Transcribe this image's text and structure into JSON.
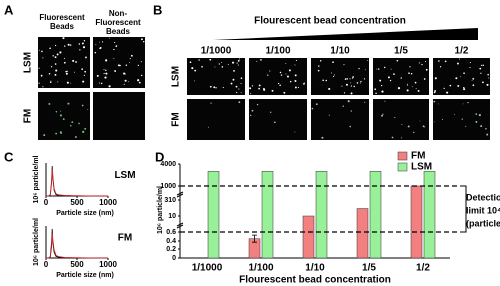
{
  "panel_a": {
    "label": "A",
    "columns": [
      [
        "Fluorescent",
        "Beads"
      ],
      [
        "Non-",
        "Fluorescent",
        "Beads"
      ]
    ],
    "rows": [
      "LSM",
      "FM"
    ]
  },
  "panel_b": {
    "label": "B",
    "title": "Flourescent bead concentration",
    "columns": [
      "1/1000",
      "1/100",
      "1/10",
      "1/5",
      "1/2"
    ],
    "rows": [
      "LSM",
      "FM"
    ]
  },
  "chart_data": [
    {
      "type": "line",
      "panel_label": "C",
      "title": "LSM",
      "x_label": "Particle size (nm)",
      "y_label": "10⁶ particle/ml",
      "x": [
        0,
        40,
        70,
        90,
        100,
        110,
        130,
        160,
        200,
        300,
        500,
        800,
        1000
      ],
      "xlim": [
        0,
        1000
      ],
      "xticks": [
        0,
        500,
        1000
      ],
      "ylim": [
        0,
        1.1
      ],
      "series": [
        {
          "name": "LSM",
          "color": "#000000",
          "values": [
            0,
            0,
            0.05,
            0.5,
            1,
            0.6,
            0.2,
            0.05,
            0.02,
            0.01,
            0,
            0,
            0
          ]
        },
        {
          "name": "LSM-fit",
          "color": "#d62728",
          "values": [
            0,
            0,
            0.03,
            0.4,
            0.9,
            0.7,
            0.25,
            0.08,
            0.04,
            0.02,
            0.01,
            0,
            0
          ]
        }
      ]
    },
    {
      "type": "line",
      "title": "FM",
      "x_label": "Particle size (nm)",
      "y_label": "10⁶ particle/ml",
      "x": [
        0,
        40,
        70,
        90,
        100,
        110,
        130,
        160,
        200,
        300,
        500,
        800,
        1000
      ],
      "xlim": [
        0,
        1000
      ],
      "xticks": [
        0,
        500,
        1000
      ],
      "ylim": [
        0,
        1.1
      ],
      "series": [
        {
          "name": "FM",
          "color": "#000000",
          "values": [
            0,
            0,
            0.05,
            0.55,
            1,
            0.55,
            0.2,
            0.06,
            0.03,
            0.01,
            0,
            0,
            0
          ]
        },
        {
          "name": "FM-fit",
          "color": "#d62728",
          "values": [
            0,
            0,
            0.02,
            0.35,
            0.85,
            0.65,
            0.3,
            0.1,
            0.05,
            0.02,
            0.01,
            0,
            0
          ]
        }
      ]
    },
    {
      "type": "bar",
      "panel_label": "D",
      "x_label": "Flourescent bead concentration",
      "y_label": "10⁶ particle/ml",
      "categories": [
        "1/1000",
        "1/100",
        "1/10",
        "1/5",
        "1/2"
      ],
      "series": [
        {
          "name": "FM",
          "color": "#f28080",
          "values": [
            0,
            0.45,
            10,
            150,
            1000
          ],
          "errors": [
            null,
            0.08,
            null,
            null,
            null
          ]
        },
        {
          "name": "LSM",
          "color": "#98f098",
          "values": [
            3000,
            3000,
            3000,
            3000,
            3000
          ]
        }
      ],
      "ylim": [
        0,
        4000
      ],
      "yticks": [
        0,
        0.2,
        0.4,
        0.6,
        10,
        310,
        1000,
        4000
      ],
      "hlines": [
        0.6,
        1000
      ],
      "annotation": [
        "Detection",
        "limit 10⁴-10⁸",
        "(particle/ml)"
      ]
    }
  ]
}
